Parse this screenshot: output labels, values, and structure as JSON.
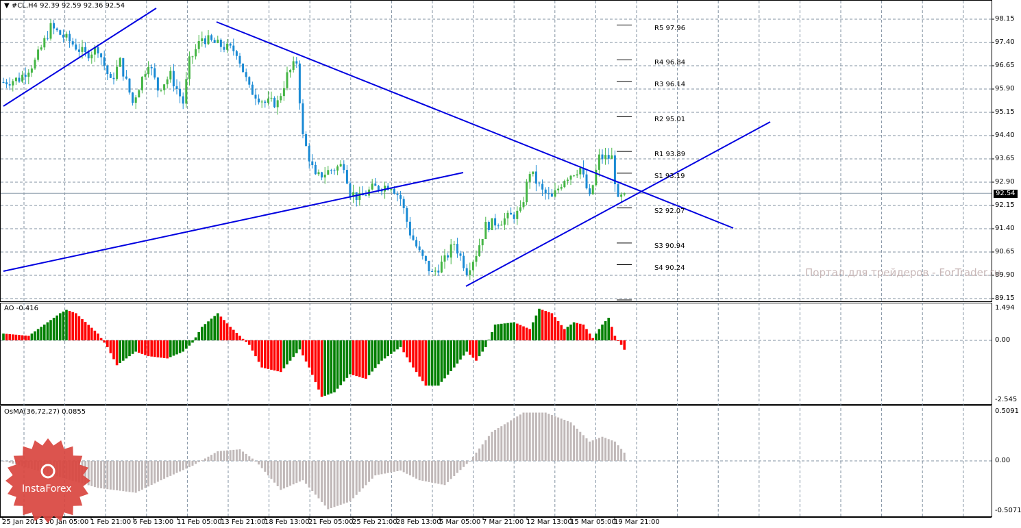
{
  "header": {
    "symbol": "#CL,H4",
    "ohlc": "92.39 92.59 92.36 92.54"
  },
  "price_axis": [
    "98.15",
    "97.40",
    "96.65",
    "95.90",
    "95.15",
    "94.40",
    "93.65",
    "92.90",
    "92.15",
    "91.40",
    "90.65",
    "89.90",
    "89.15"
  ],
  "current_price": "92.54",
  "pivots": [
    {
      "label": "R5 97.96",
      "value": 97.96
    },
    {
      "label": "R4 96.84",
      "value": 96.84
    },
    {
      "label": "R3 96.14",
      "value": 96.14
    },
    {
      "label": "R2 95.01",
      "value": 95.01
    },
    {
      "label": "R1 93.89",
      "value": 93.89
    },
    {
      "label": "S1 93.19",
      "value": 93.19
    },
    {
      "label": "S2 92.07",
      "value": 92.07
    },
    {
      "label": "S3 90.94",
      "value": 90.94
    },
    {
      "label": "S4 90.24",
      "value": 90.24
    }
  ],
  "ao": {
    "title": "AO -0.416",
    "axis": [
      "1.494",
      "0.00",
      "-2.545"
    ],
    "colors": {
      "up": "#008000",
      "down": "#ff0000"
    }
  },
  "osma": {
    "title": "OsMA(36,72,27) 0.0855",
    "axis": [
      "0.5091",
      "0.00",
      "-0.5071"
    ],
    "color": "#c0b8b8"
  },
  "time_axis": [
    "25 Jan 2013",
    "30 Jan 05:00",
    "1 Feb 21:00",
    "6 Feb 13:00",
    "11 Feb 05:00",
    "13 Feb 21:00",
    "18 Feb 13:00",
    "21 Feb 05:00",
    "25 Feb 21:00",
    "28 Feb 13:00",
    "5 Mar 05:00",
    "7 Mar 21:00",
    "12 Mar 13:00",
    "15 Mar 05:00",
    "19 Mar 21:00"
  ],
  "watermark": "Портал для трейдеров - ForTrader.ru",
  "logo": "InstaForex",
  "colors": {
    "bull": "#45b545",
    "bear": "#1a8ad4",
    "trendline": "#0000e0",
    "grid": "#8090a0"
  },
  "chart_data": {
    "type": "candlestick",
    "close_path": [
      [
        0,
        96.12
      ],
      [
        5,
        96.23
      ],
      [
        10,
        96.78
      ],
      [
        15,
        97.89
      ],
      [
        21,
        97.44
      ],
      [
        26,
        97.0
      ],
      [
        30,
        97.22
      ],
      [
        34,
        96.12
      ],
      [
        37,
        96.78
      ],
      [
        41,
        95.46
      ],
      [
        46,
        96.78
      ],
      [
        49,
        95.9
      ],
      [
        53,
        96.34
      ],
      [
        57,
        95.46
      ],
      [
        59,
        96.78
      ],
      [
        63,
        97.55
      ],
      [
        68,
        97.33
      ],
      [
        74,
        97.11
      ],
      [
        78,
        95.9
      ],
      [
        83,
        95.46
      ],
      [
        87,
        95.46
      ],
      [
        90,
        96.34
      ],
      [
        93,
        96.78
      ],
      [
        95,
        94.36
      ],
      [
        99,
        93.03
      ],
      [
        103,
        93.25
      ],
      [
        108,
        93.47
      ],
      [
        110,
        92.59
      ],
      [
        113,
        92.37
      ],
      [
        117,
        92.7
      ],
      [
        123,
        92.81
      ],
      [
        126,
        92.37
      ],
      [
        129,
        91.27
      ],
      [
        132,
        90.61
      ],
      [
        136,
        89.94
      ],
      [
        140,
        90.38
      ],
      [
        143,
        90.94
      ],
      [
        147,
        90.05
      ],
      [
        150,
        90.61
      ],
      [
        153,
        91.49
      ],
      [
        159,
        91.71
      ],
      [
        164,
        91.93
      ],
      [
        167,
        93.25
      ],
      [
        171,
        92.59
      ],
      [
        174,
        92.37
      ],
      [
        178,
        93.03
      ],
      [
        183,
        93.36
      ],
      [
        186,
        92.37
      ],
      [
        189,
        93.69
      ],
      [
        193,
        93.69
      ],
      [
        195,
        92.26
      ],
      [
        197,
        92.54
      ]
    ],
    "ao_path": [
      [
        0,
        0.3
      ],
      [
        8,
        0.2
      ],
      [
        18,
        1.2
      ],
      [
        20,
        1.35
      ],
      [
        23,
        1.2
      ],
      [
        30,
        0.3
      ],
      [
        33,
        -0.3
      ],
      [
        36,
        -1.1
      ],
      [
        42,
        -0.5
      ],
      [
        46,
        -0.7
      ],
      [
        52,
        -0.8
      ],
      [
        57,
        -0.5
      ],
      [
        60,
        -0.1
      ],
      [
        63,
        0.6
      ],
      [
        68,
        1.2
      ],
      [
        72,
        0.6
      ],
      [
        78,
        -0.2
      ],
      [
        82,
        -1.2
      ],
      [
        88,
        -1.4
      ],
      [
        94,
        -0.4
      ],
      [
        97,
        -1.2
      ],
      [
        101,
        -2.5
      ],
      [
        105,
        -2.3
      ],
      [
        110,
        -1.5
      ],
      [
        115,
        -1.7
      ],
      [
        120,
        -0.9
      ],
      [
        126,
        -0.3
      ],
      [
        130,
        -1.2
      ],
      [
        134,
        -2.0
      ],
      [
        138,
        -2.0
      ],
      [
        143,
        -1.2
      ],
      [
        147,
        -0.5
      ],
      [
        150,
        -0.9
      ],
      [
        153,
        -0.3
      ],
      [
        156,
        0.7
      ],
      [
        162,
        0.8
      ],
      [
        167,
        0.5
      ],
      [
        170,
        1.4
      ],
      [
        174,
        1.2
      ],
      [
        178,
        0.5
      ],
      [
        181,
        0.8
      ],
      [
        184,
        0.7
      ],
      [
        187,
        0.1
      ],
      [
        190,
        0.7
      ],
      [
        192,
        1.0
      ],
      [
        194,
        0.2
      ],
      [
        196,
        -0.2
      ],
      [
        197,
        -0.416
      ]
    ],
    "osma_path": [
      [
        0,
        0
      ],
      [
        30,
        -0.28
      ],
      [
        42,
        -0.33
      ],
      [
        50,
        -0.2
      ],
      [
        60,
        -0.05
      ],
      [
        68,
        0.1
      ],
      [
        75,
        0.12
      ],
      [
        80,
        0
      ],
      [
        88,
        -0.3
      ],
      [
        95,
        -0.2
      ],
      [
        103,
        -0.5
      ],
      [
        110,
        -0.42
      ],
      [
        118,
        -0.15
      ],
      [
        126,
        -0.1
      ],
      [
        132,
        -0.2
      ],
      [
        140,
        -0.25
      ],
      [
        148,
        0
      ],
      [
        155,
        0.3
      ],
      [
        165,
        0.5
      ],
      [
        172,
        0.5
      ],
      [
        180,
        0.4
      ],
      [
        186,
        0.2
      ],
      [
        190,
        0.25
      ],
      [
        194,
        0.2
      ],
      [
        197,
        0.0855
      ]
    ],
    "ylim": [
      89.15,
      98.15
    ]
  }
}
